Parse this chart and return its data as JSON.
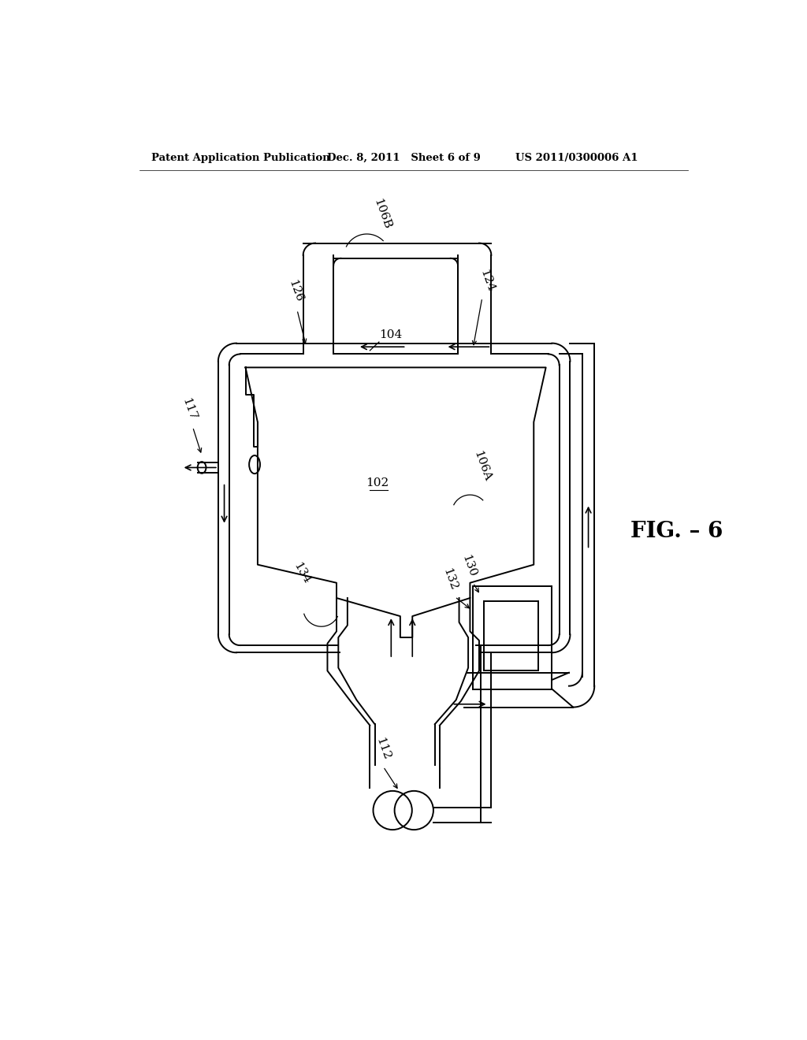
{
  "header_left": "Patent Application Publication",
  "header_mid": "Dec. 8, 2011   Sheet 6 of 9",
  "header_right": "US 2011/0300006 A1",
  "fig_label": "FIG.–6",
  "background_color": "#ffffff",
  "line_color": "#000000",
  "lw": 1.4,
  "lw_thin": 0.9
}
